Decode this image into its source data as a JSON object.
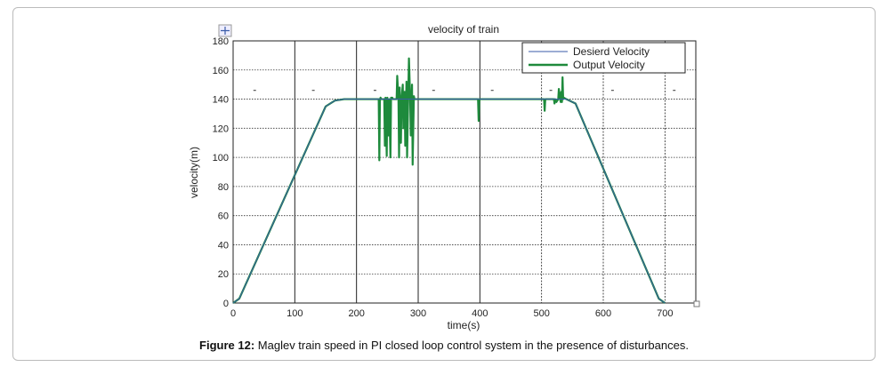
{
  "chart_data": {
    "type": "line",
    "title": "velocity  of train",
    "xlabel": "time(s)",
    "ylabel": "velocity(m)",
    "xlim": [
      0,
      750
    ],
    "ylim": [
      0,
      180
    ],
    "xticks": [
      0,
      100,
      200,
      300,
      400,
      500,
      600,
      700
    ],
    "yticks": [
      0,
      20,
      40,
      60,
      80,
      100,
      120,
      140,
      160,
      180
    ],
    "grid": true,
    "legend_position": "top-right",
    "series": [
      {
        "name": "Desierd  Velocity",
        "color": "#3a5ba8",
        "x": [
          0,
          10,
          150,
          165,
          180,
          540,
          555,
          690,
          700
        ],
        "y": [
          0,
          3,
          135,
          139,
          140,
          140,
          137,
          3,
          0
        ]
      },
      {
        "name": "Output  Velocity",
        "color": "#1e8a3c",
        "x": [
          0,
          10,
          150,
          165,
          180,
          236,
          237,
          238,
          239,
          240,
          245,
          246,
          247,
          249,
          250,
          252,
          253,
          255,
          256,
          258,
          259,
          262,
          265,
          266,
          268,
          269,
          270,
          272,
          273,
          275,
          276,
          278,
          279,
          281,
          282,
          284,
          285,
          287,
          288,
          290,
          291,
          293,
          294,
          296,
          300,
          397,
          398,
          399,
          400,
          410,
          504,
          505,
          506,
          507,
          520,
          521,
          522,
          524,
          527,
          528,
          530,
          531,
          532,
          533,
          534,
          535,
          536,
          540,
          555,
          690,
          700
        ],
        "y": [
          0,
          3,
          135,
          139,
          140,
          140,
          98,
          140,
          141,
          140,
          140,
          108,
          141,
          101,
          141,
          115,
          140,
          100,
          141,
          141,
          140,
          140,
          140,
          156,
          140,
          100,
          148,
          110,
          140,
          150,
          120,
          145,
          108,
          152,
          100,
          146,
          168,
          140,
          115,
          150,
          95,
          142,
          140,
          140,
          140,
          140,
          125,
          140,
          140,
          140,
          140,
          132,
          140,
          140,
          140,
          137,
          140,
          138,
          140,
          147,
          140,
          138,
          145,
          138,
          155,
          140,
          141,
          140,
          137,
          3,
          0
        ]
      }
    ]
  },
  "caption": {
    "label": "Figure 12:",
    "text": " Maglev train speed in PI closed loop control system in the presence of disturbances."
  }
}
